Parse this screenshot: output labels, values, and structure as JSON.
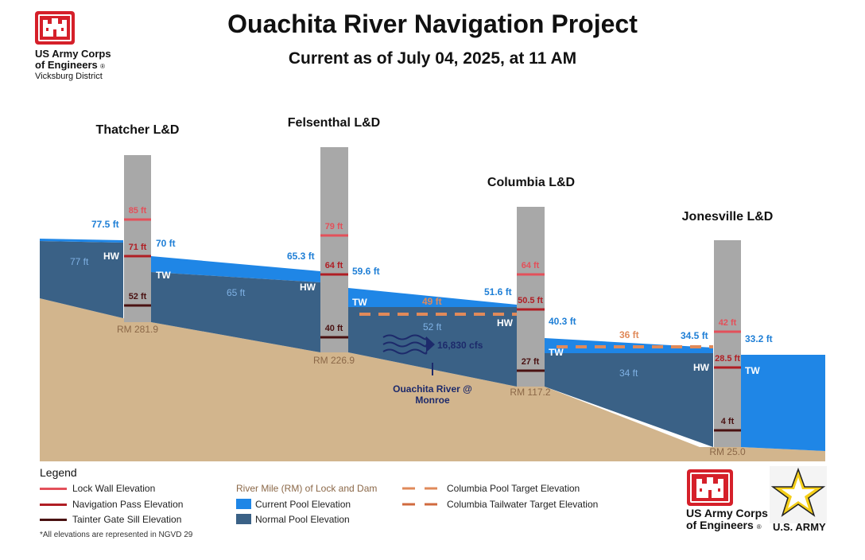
{
  "header": {
    "title": "Ouachita River Navigation Project",
    "subtitle": "Current as of July 04, 2025, at 11 AM"
  },
  "logo_top": {
    "line1": "US Army Corps",
    "line2": "of Engineers",
    "line3": "Vicksburg District",
    "registered_mark": "®"
  },
  "colors": {
    "current_pool": "#1f86e6",
    "normal_pool": "#3a6186",
    "terrain": "#d2b58d",
    "pillar": "#a8a8a8",
    "lock_wall": "#e3505a",
    "navigation_pass": "#b01e24",
    "tainter_gate": "#4a1212",
    "target": "#e08a5a",
    "river_mile_text": "#8b6848",
    "label_blue": "#1f7fd6"
  },
  "locks": [
    {
      "name": "Thatcher L&D",
      "river_mile": "RM 281.9",
      "lock_wall": "85 ft",
      "navigation_pass": "71 ft",
      "sill": "52 ft",
      "hw_current": "77.5 ft",
      "tw_current": "70 ft",
      "hw_label": "HW",
      "tw_label": "TW"
    },
    {
      "name": "Felsenthal L&D",
      "river_mile": "RM 226.9",
      "lock_wall": "79 ft",
      "navigation_pass": "64 ft",
      "sill": "40 ft",
      "hw_current": "65.3 ft",
      "tw_current": "59.6 ft",
      "hw_label": "HW",
      "tw_label": "TW"
    },
    {
      "name": "Columbia L&D",
      "river_mile": "RM 117.2",
      "lock_wall": "64 ft",
      "navigation_pass": "50.5 ft",
      "sill": "27 ft",
      "hw_current": "51.6 ft",
      "tw_current": "40.3 ft",
      "hw_label": "HW",
      "tw_label": "TW"
    },
    {
      "name": "Jonesville L&D",
      "river_mile": "RM 25.0",
      "lock_wall": "42 ft",
      "navigation_pass": "28.5 ft",
      "sill": "4 ft",
      "hw_current": "34.5 ft",
      "tw_current": "33.2 ft",
      "hw_label": "HW",
      "tw_label": "TW"
    }
  ],
  "pools": {
    "thatcher_normal": "77 ft",
    "thatcher_felsenthal_normal": "65 ft",
    "felsenthal_columbia_normal": "52 ft",
    "columbia_jonesville_normal": "34 ft",
    "columbia_pool_target": "49 ft",
    "columbia_tailwater_target": "36 ft"
  },
  "gauge": {
    "flow": "16,830 cfs",
    "name_line1": "Ouachita River @",
    "name_line2": "Monroe"
  },
  "legend": {
    "title": "Legend",
    "items": [
      {
        "label": "Lock Wall Elevation",
        "kind": "line",
        "color": "#e3505a"
      },
      {
        "label": "Navigation Pass Elevation",
        "kind": "line",
        "color": "#b01e24"
      },
      {
        "label": "Tainter Gate Sill Elevation",
        "kind": "line",
        "color": "#4a1212"
      },
      {
        "label": "River Mile (RM) of Lock and Dam",
        "kind": "text",
        "color": "#8b6848"
      },
      {
        "label": "Current Pool Elevation",
        "kind": "box",
        "color": "#1f86e6"
      },
      {
        "label": "Normal Pool Elevation",
        "kind": "box",
        "color": "#3a6186"
      },
      {
        "label": "Columbia Pool Target Elevation",
        "kind": "dash",
        "color": "#e08a5a"
      },
      {
        "label": "Columbia Tailwater Target Elevation",
        "kind": "dash",
        "color": "#e08a5a"
      }
    ],
    "footnote": "*All elevations are represented in NGVD 29"
  },
  "logo_bottom": {
    "line1": "US Army Corps",
    "line2": "of Engineers",
    "registered_mark": "®",
    "army_text": "U.S. ARMY"
  }
}
